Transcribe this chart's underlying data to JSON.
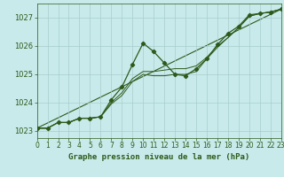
{
  "title": "Graphe pression niveau de la mer (hPa)",
  "bg_color": "#c8eaea",
  "line_color": "#2d5a1b",
  "grid_color": "#a8cccc",
  "xlim": [
    0,
    23
  ],
  "ylim": [
    1022.75,
    1027.5
  ],
  "yticks": [
    1023,
    1024,
    1025,
    1026,
    1027
  ],
  "xticks": [
    0,
    1,
    2,
    3,
    4,
    5,
    6,
    7,
    8,
    9,
    10,
    11,
    12,
    13,
    14,
    15,
    16,
    17,
    18,
    19,
    20,
    21,
    22,
    23
  ],
  "main_x": [
    0,
    1,
    2,
    3,
    4,
    5,
    6,
    7,
    8,
    9,
    10,
    11,
    12,
    13,
    14,
    15,
    16,
    17,
    18,
    19,
    20,
    21,
    22,
    23
  ],
  "main_y": [
    1023.1,
    1023.1,
    1023.3,
    1023.3,
    1023.45,
    1023.45,
    1023.5,
    1024.1,
    1024.55,
    1025.35,
    1026.1,
    1025.8,
    1025.4,
    1025.0,
    1024.95,
    1025.2,
    1025.55,
    1026.05,
    1026.45,
    1026.7,
    1027.1,
    1027.15,
    1027.2,
    1027.3
  ],
  "smooth1_x": [
    0,
    1,
    2,
    3,
    4,
    5,
    6,
    7,
    8,
    9,
    10,
    11,
    12,
    13,
    14,
    15,
    16,
    17,
    18,
    19,
    20,
    21,
    22,
    23
  ],
  "smooth1_y": [
    1023.1,
    1023.1,
    1023.3,
    1023.3,
    1023.45,
    1023.45,
    1023.5,
    1024.0,
    1024.35,
    1024.85,
    1025.1,
    1025.1,
    1025.15,
    1025.2,
    1025.2,
    1025.3,
    1025.6,
    1026.0,
    1026.3,
    1026.65,
    1027.05,
    1027.15,
    1027.2,
    1027.3
  ],
  "smooth2_x": [
    0,
    1,
    2,
    3,
    4,
    5,
    6,
    7,
    8,
    9,
    10,
    11,
    12,
    13,
    14,
    15,
    16,
    17,
    18,
    19,
    20,
    21,
    22,
    23
  ],
  "smooth2_y": [
    1023.1,
    1023.1,
    1023.3,
    1023.3,
    1023.45,
    1023.45,
    1023.5,
    1023.95,
    1024.25,
    1024.75,
    1025.0,
    1024.95,
    1024.95,
    1025.0,
    1025.0,
    1025.1,
    1025.55,
    1025.95,
    1026.3,
    1026.65,
    1027.05,
    1027.15,
    1027.2,
    1027.3
  ],
  "trend_x": [
    0,
    23
  ],
  "trend_y": [
    1023.1,
    1027.3
  ],
  "xlabel_fontsize": 6.5,
  "tick_fontsize": 5.5,
  "ytick_fontsize": 6.0
}
